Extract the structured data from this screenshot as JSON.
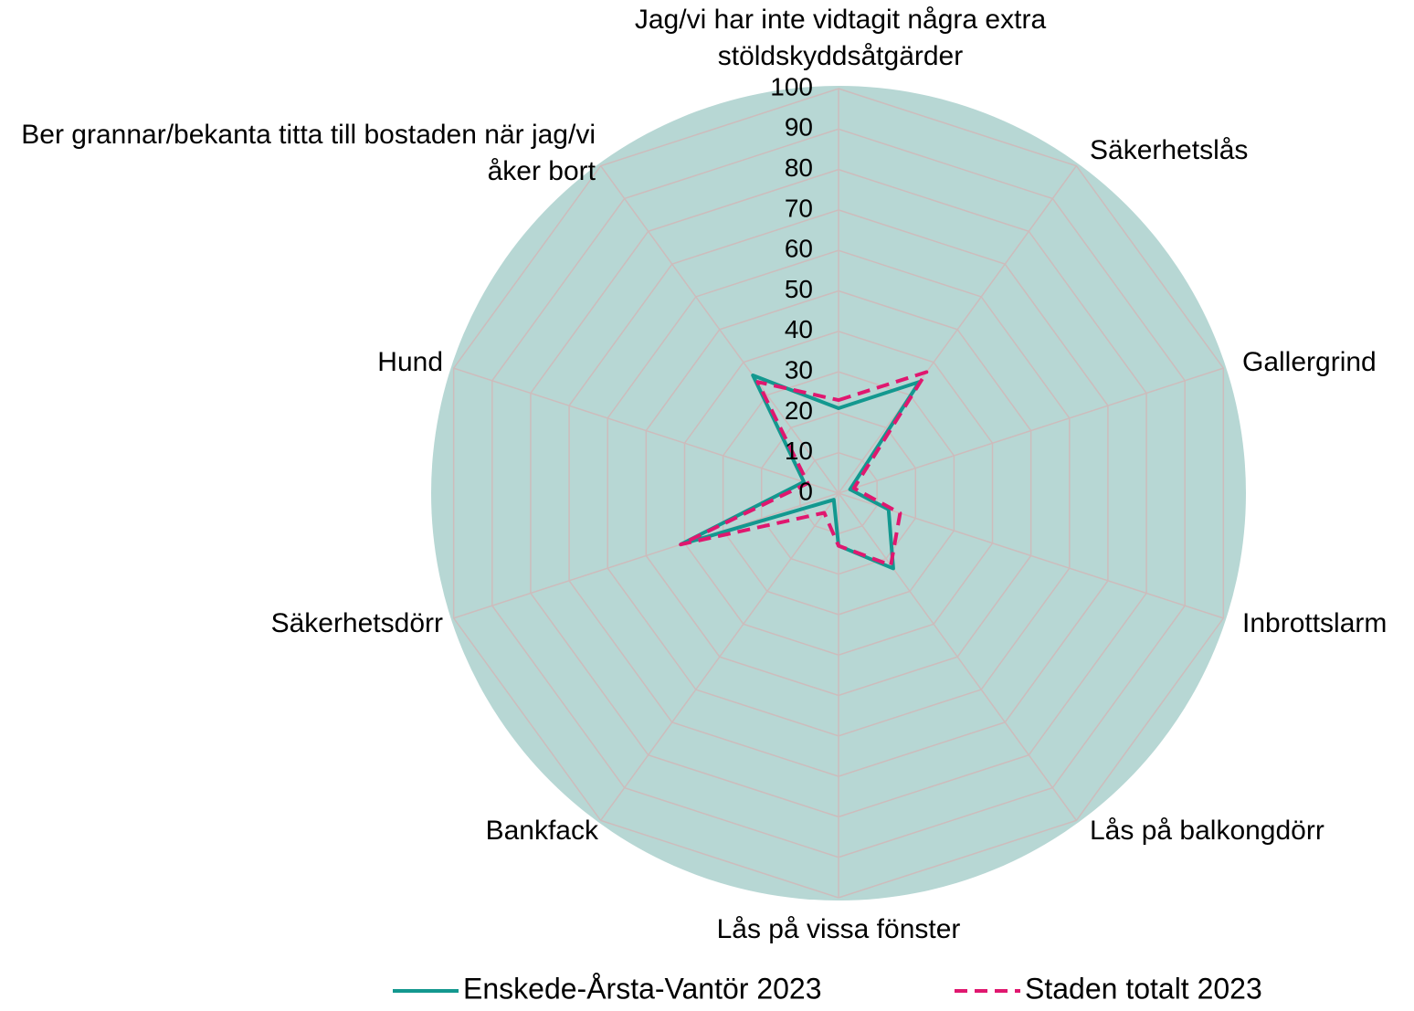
{
  "chart_data": {
    "type": "radar",
    "categories": [
      "Jag/vi har inte vidtagit några extra stöldskyddsåtgärder",
      "Säkerhetslås",
      "Gallergrind",
      "Inbrottslarm",
      "Lås på balkongdörr",
      "Lås på vissa fönster",
      "Bankfack",
      "Säkerhetsdörr",
      "Hund",
      "Ber grannar/bekanta titta till bostaden när jag/vi åker bort"
    ],
    "series": [
      {
        "name": "Enskede-Årsta-Vantör 2023",
        "color": "#13988f",
        "dash": false,
        "values": [
          21,
          34,
          3,
          13,
          23,
          13,
          2,
          41,
          9,
          36
        ]
      },
      {
        "name": "Staden totalt 2023",
        "color": "#e0176f",
        "dash": true,
        "values": [
          23,
          37,
          4,
          16,
          22,
          13,
          6,
          41,
          8,
          34
        ]
      }
    ],
    "ylim": [
      0,
      100
    ],
    "yticks": [
      0,
      10,
      20,
      30,
      40,
      50,
      60,
      70,
      80,
      90,
      100
    ],
    "grid": true,
    "legend": "bottom"
  }
}
